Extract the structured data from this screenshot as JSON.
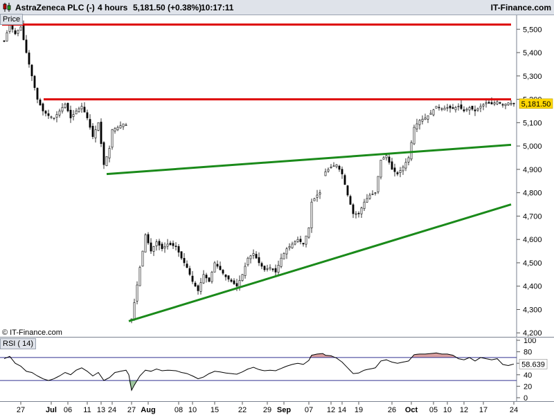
{
  "header": {
    "instrument": "AstraZeneca PLC (-)",
    "timeframe": "4 hours",
    "price_change": "5,181.50 (+0.38%)",
    "time": "10:17:11",
    "site": "IT-Finance.com"
  },
  "price_panel": {
    "label": "Price",
    "copyright": "© IT-Finance.com",
    "last_price_label": "5,181.50"
  },
  "rsi_panel": {
    "label": "RSI ( 14)",
    "value_label": "58.639"
  },
  "colors": {
    "resistance": "#dd0000",
    "trendline": "#1a8a1a",
    "candle_up": "#ffffff",
    "candle_down": "#000000",
    "rsi_line": "#000000",
    "rsi_band": "#303090",
    "rsi_overbought_fill": "#d9a0a0",
    "rsi_oversold_fill": "#9fc79f",
    "last_price_badge": "#ffd700"
  },
  "chart_data": [
    {
      "type": "candlestick",
      "title": "AstraZeneca PLC (-)",
      "ylim": [
        4180,
        5560
      ],
      "y_ticks": [
        "5,500",
        "5,400",
        "5,300",
        "5,200",
        "5,100",
        "5,000",
        "4,900",
        "4,800",
        "4,700",
        "4,600",
        "4,500",
        "4,400",
        "4,300",
        "4,200"
      ],
      "y_tick_values": [
        5500,
        5400,
        5300,
        5200,
        5100,
        5000,
        4900,
        4800,
        4700,
        4600,
        4500,
        4400,
        4300,
        4200
      ],
      "x_ticks": [
        "27",
        "Jul",
        "06",
        "11",
        "13",
        "24",
        "27",
        "Aug",
        "08",
        "10",
        "15",
        "22",
        "29",
        "Sep",
        "07",
        "12",
        "14",
        "19",
        "26",
        "Oct",
        "05",
        "10",
        "12",
        "17",
        "24"
      ],
      "x_tick_bars": [
        6,
        17,
        23,
        30,
        35,
        39,
        46,
        52,
        63,
        68,
        76,
        86,
        95,
        101,
        110,
        118,
        122,
        128,
        140,
        147,
        155,
        160,
        166,
        173,
        184
      ],
      "bar_count": 185,
      "price_path": [
        [
          0,
          5450
        ],
        [
          2,
          5520
        ],
        [
          4,
          5480
        ],
        [
          6,
          5510
        ],
        [
          8,
          5400
        ],
        [
          10,
          5300
        ],
        [
          12,
          5200
        ],
        [
          14,
          5150
        ],
        [
          16,
          5130
        ],
        [
          18,
          5120
        ],
        [
          20,
          5150
        ],
        [
          22,
          5180
        ],
        [
          24,
          5120
        ],
        [
          26,
          5150
        ],
        [
          28,
          5170
        ],
        [
          30,
          5120
        ],
        [
          32,
          5040
        ],
        [
          34,
          5100
        ],
        [
          36,
          4920
        ],
        [
          38,
          4990
        ],
        [
          39,
          5070
        ],
        [
          41,
          5080
        ],
        [
          43,
          5095
        ],
        [
          44,
          5090
        ],
        [
          45,
          null
        ],
        [
          46,
          4260
        ],
        [
          47,
          4330
        ],
        [
          49,
          4480
        ],
        [
          51,
          4620
        ],
        [
          53,
          4550
        ],
        [
          55,
          4590
        ],
        [
          57,
          4560
        ],
        [
          59,
          4580
        ],
        [
          62,
          4570
        ],
        [
          64,
          4520
        ],
        [
          66,
          4480
        ],
        [
          68,
          4420
        ],
        [
          70,
          4380
        ],
        [
          72,
          4450
        ],
        [
          74,
          4420
        ],
        [
          76,
          4500
        ],
        [
          78,
          4470
        ],
        [
          80,
          4440
        ],
        [
          82,
          4420
        ],
        [
          84,
          4400
        ],
        [
          86,
          4450
        ],
        [
          88,
          4520
        ],
        [
          90,
          4540
        ],
        [
          92,
          4500
        ],
        [
          94,
          4470
        ],
        [
          96,
          4480
        ],
        [
          98,
          4460
        ],
        [
          100,
          4520
        ],
        [
          102,
          4560
        ],
        [
          104,
          4580
        ],
        [
          106,
          4600
        ],
        [
          108,
          4580
        ],
        [
          110,
          4650
        ],
        [
          111,
          4760
        ],
        [
          113,
          4790
        ],
        [
          114,
          4800
        ],
        [
          115,
          null
        ],
        [
          116,
          4890
        ],
        [
          118,
          4910
        ],
        [
          120,
          4920
        ],
        [
          122,
          4880
        ],
        [
          124,
          4790
        ],
        [
          126,
          4710
        ],
        [
          128,
          4710
        ],
        [
          130,
          4760
        ],
        [
          132,
          4790
        ],
        [
          134,
          4800
        ],
        [
          136,
          4940
        ],
        [
          138,
          4960
        ],
        [
          140,
          4900
        ],
        [
          142,
          4880
        ],
        [
          144,
          4910
        ],
        [
          146,
          4950
        ],
        [
          148,
          5080
        ],
        [
          150,
          5110
        ],
        [
          152,
          5120
        ],
        [
          154,
          5140
        ],
        [
          156,
          5170
        ],
        [
          158,
          5160
        ],
        [
          160,
          5165
        ],
        [
          162,
          5160
        ],
        [
          164,
          5170
        ],
        [
          166,
          5150
        ],
        [
          168,
          5165
        ],
        [
          170,
          5150
        ],
        [
          172,
          5170
        ],
        [
          174,
          5185
        ],
        [
          176,
          5180
        ],
        [
          178,
          5190
        ],
        [
          180,
          5175
        ],
        [
          182,
          5185
        ],
        [
          184,
          5181.5
        ]
      ],
      "resistance_levels": [
        5520,
        5200
      ],
      "trendlines": [
        {
          "from": [
            37,
            4880
          ],
          "to": [
            185,
            5005
          ]
        },
        {
          "from": [
            45,
            4250
          ],
          "to": [
            185,
            4750
          ]
        }
      ],
      "last_price": 5181.5
    },
    {
      "type": "line",
      "title": "RSI ( 14)",
      "ylim": [
        0,
        100
      ],
      "y_ticks": [
        "100",
        "80",
        "60",
        "40",
        "20",
        "0"
      ],
      "y_tick_values": [
        100,
        80,
        60,
        40,
        20,
        0
      ],
      "overbought": 70,
      "oversold": 30,
      "rsi_path": [
        [
          0,
          68
        ],
        [
          2,
          72
        ],
        [
          4,
          60
        ],
        [
          6,
          55
        ],
        [
          8,
          46
        ],
        [
          10,
          44
        ],
        [
          12,
          38
        ],
        [
          14,
          33
        ],
        [
          16,
          30
        ],
        [
          18,
          33
        ],
        [
          20,
          38
        ],
        [
          22,
          44
        ],
        [
          24,
          40
        ],
        [
          26,
          48
        ],
        [
          28,
          52
        ],
        [
          30,
          46
        ],
        [
          32,
          38
        ],
        [
          34,
          44
        ],
        [
          36,
          30
        ],
        [
          38,
          35
        ],
        [
          40,
          44
        ],
        [
          42,
          46
        ],
        [
          44,
          48
        ],
        [
          45,
          40
        ],
        [
          46,
          13
        ],
        [
          47,
          22
        ],
        [
          49,
          38
        ],
        [
          51,
          48
        ],
        [
          53,
          46
        ],
        [
          55,
          50
        ],
        [
          57,
          47
        ],
        [
          59,
          48
        ],
        [
          62,
          47
        ],
        [
          64,
          44
        ],
        [
          66,
          42
        ],
        [
          68,
          38
        ],
        [
          70,
          33
        ],
        [
          72,
          36
        ],
        [
          74,
          42
        ],
        [
          76,
          46
        ],
        [
          78,
          45
        ],
        [
          80,
          43
        ],
        [
          82,
          42
        ],
        [
          84,
          41
        ],
        [
          86,
          45
        ],
        [
          88,
          50
        ],
        [
          90,
          53
        ],
        [
          92,
          49
        ],
        [
          94,
          47
        ],
        [
          96,
          48
        ],
        [
          98,
          47
        ],
        [
          100,
          51
        ],
        [
          102,
          55
        ],
        [
          104,
          58
        ],
        [
          106,
          60
        ],
        [
          108,
          58
        ],
        [
          110,
          65
        ],
        [
          111,
          74
        ],
        [
          113,
          76
        ],
        [
          115,
          77
        ],
        [
          116,
          74
        ],
        [
          118,
          73
        ],
        [
          120,
          69
        ],
        [
          122,
          62
        ],
        [
          124,
          52
        ],
        [
          126,
          42
        ],
        [
          128,
          43
        ],
        [
          130,
          48
        ],
        [
          132,
          50
        ],
        [
          134,
          52
        ],
        [
          136,
          64
        ],
        [
          138,
          66
        ],
        [
          140,
          62
        ],
        [
          142,
          60
        ],
        [
          144,
          62
        ],
        [
          146,
          64
        ],
        [
          148,
          75
        ],
        [
          150,
          76
        ],
        [
          152,
          76
        ],
        [
          154,
          77
        ],
        [
          156,
          78
        ],
        [
          158,
          76
        ],
        [
          160,
          76
        ],
        [
          162,
          74
        ],
        [
          164,
          68
        ],
        [
          166,
          66
        ],
        [
          168,
          70
        ],
        [
          170,
          64
        ],
        [
          172,
          70
        ],
        [
          174,
          68
        ],
        [
          176,
          66
        ],
        [
          178,
          68
        ],
        [
          180,
          58
        ],
        [
          182,
          56
        ],
        [
          184,
          58.639
        ]
      ]
    }
  ]
}
